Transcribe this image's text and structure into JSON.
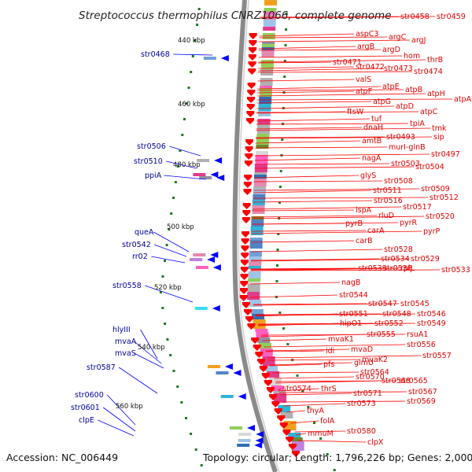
{
  "title": "Streptococcus thermophilus CNRZ1066, complete genome",
  "footer": {
    "accession": "Accession: NC_006449",
    "topology": "Topology: circular; Length: 1,796,226 bp; Genes: 2,000"
  },
  "ruler": [
    "440 kbp",
    "460 kbp",
    "480 kbp",
    "500 kbp",
    "520 kbp",
    "540 kbp",
    "560 kbp"
  ],
  "colors": {
    "backbone": "#8a8a8a",
    "plus_strand_arrow": "#ff0000",
    "minus_strand_arrow": "#0000ff",
    "plus_label": "#e00000",
    "minus_label": "#0000a0",
    "tick": "#1e7a1e"
  },
  "labels_right": [
    "str0458",
    "str0459",
    "aspC3",
    "argC",
    "argJ",
    "argB",
    "argD",
    "hom",
    "thrB",
    "str0471",
    "str0472",
    "str0473",
    "str0474",
    "valS",
    "atpE",
    "atpB",
    "atpF",
    "atpH",
    "atpA",
    "atpG",
    "atpD",
    "atpC",
    "ftsW",
    "tuf",
    "tpiA",
    "dnaH",
    "tmk",
    "str0493",
    "sip",
    "amtB",
    "murI-glnB",
    "str0497",
    "nagA",
    "str0503",
    "str0504",
    "glyS",
    "str0508",
    "str0509",
    "str0511",
    "str0512",
    "str0516",
    "str0517",
    "lspA",
    "rluD",
    "str0520",
    "pyrB",
    "pyrR",
    "pyrP",
    "carA",
    "carB",
    "str0528",
    "rplJ",
    "str0534",
    "str0529",
    "str0539",
    "str0538",
    "rplL",
    "str0533",
    "nagB",
    "str0544",
    "str0547",
    "str0545",
    "str0551",
    "str0548",
    "str0546",
    "hipO1",
    "str0552",
    "str0549",
    "str0555",
    "rsuA1",
    "mvaK1",
    "str0556",
    "idi",
    "mvaD",
    "str0557",
    "mvaK2",
    "pfs",
    "glmU",
    "str0564",
    "str0570",
    "str0568",
    "str0565",
    "str0574",
    "thrS",
    "str0567",
    "str0571",
    "str0573",
    "str0569",
    "thyA",
    "folA",
    "str0580",
    "mmuM",
    "clpX"
  ],
  "labels_left": [
    "str0468",
    "str0506",
    "str0510",
    "ppiA",
    "queA",
    "str0542",
    "rr02",
    "str0558",
    "hlyIII",
    "mvaA",
    "mvaS",
    "str0587",
    "str0600",
    "str0601",
    "clpE"
  ]
}
